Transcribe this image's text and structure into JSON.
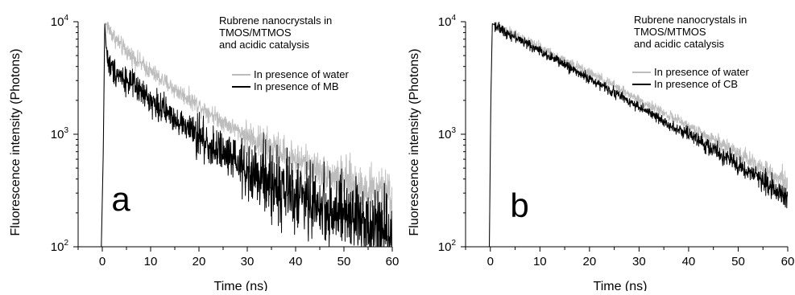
{
  "chart_data": [
    {
      "type": "line",
      "panel_label": "a",
      "annotation": [
        "Rubrene nanocrystals in",
        "TMOS/MTMOS",
        "and acidic catalysis"
      ],
      "xlabel": "Time (ns)",
      "ylabel": "Fluorescence intensity (Photons)",
      "xlim": [
        -5,
        60
      ],
      "ylim": [
        100,
        10000
      ],
      "yscale": "log",
      "xticks": [
        0,
        10,
        20,
        30,
        40,
        50,
        60
      ],
      "yticks": [
        {
          "value": 100,
          "base": "10",
          "exp": "2"
        },
        {
          "value": 1000,
          "base": "10",
          "exp": "3"
        },
        {
          "value": 10000,
          "base": "10",
          "exp": "4"
        }
      ],
      "grid": false,
      "legend_position": "top-right",
      "series": [
        {
          "name": "In presence of water",
          "color": "#bdbdbd",
          "x": [
            -0.2,
            0.2,
            0.6,
            1,
            2,
            4,
            6,
            10,
            15,
            20,
            25,
            30,
            35,
            40,
            45,
            50,
            55,
            60
          ],
          "y": [
            100,
            600,
            9800,
            9200,
            7800,
            6000,
            5000,
            3600,
            2500,
            1800,
            1300,
            950,
            760,
            600,
            480,
            380,
            320,
            280
          ],
          "noise": 0.09
        },
        {
          "name": "In presence of MB",
          "color": "#000000",
          "x": [
            -0.2,
            0.2,
            0.5,
            0.8,
            1.2,
            2,
            4,
            6,
            10,
            15,
            20,
            25,
            30,
            35,
            40,
            45,
            50,
            55,
            60
          ],
          "y": [
            100,
            700,
            9800,
            6000,
            4400,
            3800,
            3300,
            2800,
            2000,
            1400,
            950,
            650,
            470,
            360,
            290,
            230,
            190,
            165,
            145
          ],
          "noise": 0.14
        }
      ]
    },
    {
      "type": "line",
      "panel_label": "b",
      "annotation": [
        "Rubrene nanocrystals in",
        "TMOS/MTMOS",
        "and acidic catalysis"
      ],
      "xlabel": "Time (ns)",
      "ylabel": "Fluorescence intensity (Photons)",
      "xlim": [
        -5,
        60
      ],
      "ylim": [
        100,
        10000
      ],
      "yscale": "log",
      "xticks": [
        0,
        10,
        20,
        30,
        40,
        50,
        60
      ],
      "yticks": [
        {
          "value": 100,
          "base": "10",
          "exp": "2"
        },
        {
          "value": 1000,
          "base": "10",
          "exp": "3"
        },
        {
          "value": 10000,
          "base": "10",
          "exp": "4"
        }
      ],
      "grid": false,
      "legend_position": "top-right",
      "series": [
        {
          "name": "In presence of water",
          "color": "#bdbdbd",
          "x": [
            -0.2,
            0.1,
            0.4,
            0.8,
            2,
            5,
            10,
            15,
            20,
            25,
            30,
            35,
            40,
            45,
            50,
            55,
            60
          ],
          "y": [
            100,
            2000,
            9600,
            9500,
            8800,
            7600,
            5900,
            4500,
            3500,
            2700,
            2000,
            1550,
            1180,
            900,
            680,
            500,
            370
          ],
          "noise": 0.05
        },
        {
          "name": "In presence of CB",
          "color": "#000000",
          "x": [
            -0.2,
            0.1,
            0.4,
            0.8,
            2,
            5,
            10,
            15,
            20,
            25,
            30,
            35,
            40,
            45,
            50,
            55,
            60
          ],
          "y": [
            100,
            2000,
            9600,
            9400,
            8600,
            7300,
            5500,
            4150,
            3100,
            2350,
            1750,
            1300,
            970,
            730,
            530,
            390,
            280
          ],
          "noise": 0.05
        }
      ]
    }
  ]
}
